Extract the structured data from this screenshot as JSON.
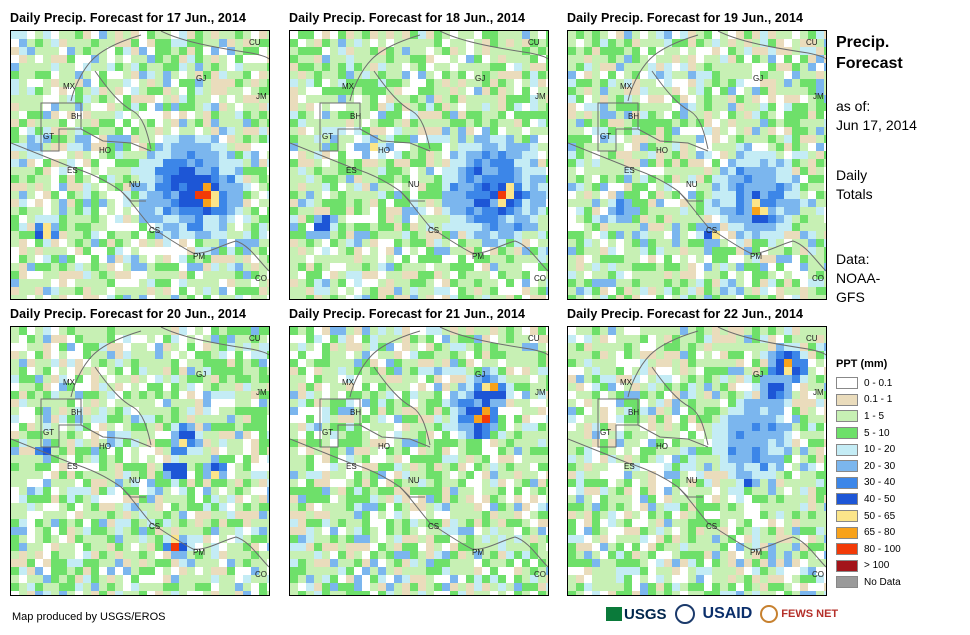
{
  "panels": [
    {
      "title": "Daily Precip. Forecast for 17 Jun., 2014"
    },
    {
      "title": "Daily Precip. Forecast for 18 Jun., 2014"
    },
    {
      "title": "Daily Precip. Forecast for 19 Jun., 2014"
    },
    {
      "title": "Daily Precip. Forecast for 20 Jun., 2014"
    },
    {
      "title": "Daily Precip. Forecast for 21 Jun., 2014"
    },
    {
      "title": "Daily Precip. Forecast for 22 Jun., 2014"
    }
  ],
  "country_labels": [
    "CU",
    "MX",
    "GJ",
    "JM",
    "BH",
    "GT",
    "HO",
    "ES",
    "NU",
    "CS",
    "PM",
    "CO"
  ],
  "sidebar": {
    "title_line1": "Precip.",
    "title_line2": "Forecast",
    "asof_label": "as of:",
    "asof_date": "Jun 17, 2014",
    "daily_line1": "Daily",
    "daily_line2": "Totals",
    "data_line1": "Data:",
    "data_line2": "NOAA-",
    "data_line3": "GFS"
  },
  "legend": {
    "title": "PPT (mm)",
    "items": [
      {
        "label": "0 - 0.1",
        "color": "#ffffff"
      },
      {
        "label": "0.1 - 1",
        "color": "#eadcbc"
      },
      {
        "label": "1 - 5",
        "color": "#c7f0b4"
      },
      {
        "label": "5 - 10",
        "color": "#6ee06a"
      },
      {
        "label": "10 - 20",
        "color": "#c4ecf5"
      },
      {
        "label": "20 - 30",
        "color": "#7bb6ee"
      },
      {
        "label": "30 - 40",
        "color": "#3c86e8"
      },
      {
        "label": "40 - 50",
        "color": "#1d56d6"
      },
      {
        "label": "50 - 65",
        "color": "#fbe58a"
      },
      {
        "label": "65 - 80",
        "color": "#f8a21a"
      },
      {
        "label": "80 - 100",
        "color": "#f23a07"
      },
      {
        "label": "> 100",
        "color": "#a3141a"
      },
      {
        "label": "No Data",
        "color": "#9a9a9a"
      }
    ]
  },
  "footer": {
    "credit": "Map produced by USGS/EROS"
  },
  "logos": {
    "usgs": "USGS",
    "usaid": "USAID",
    "fews": "FEWS NET"
  }
}
